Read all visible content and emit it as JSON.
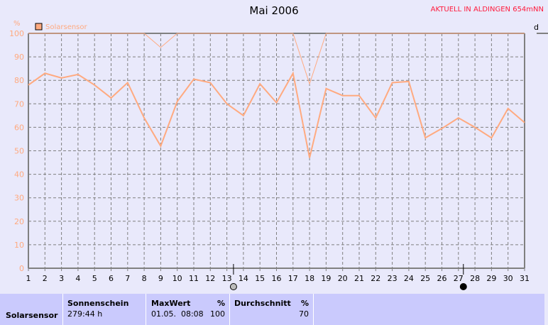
{
  "header": {
    "title": "Mai 2006",
    "subtitle": "AKTUELL IN ALDINGEN 654mNN",
    "right_panel_label": "d"
  },
  "chart_data": {
    "type": "line",
    "title": "Mai 2006",
    "ylabel": "%",
    "ylim": [
      0,
      100
    ],
    "yticks": [
      0,
      10,
      20,
      30,
      40,
      50,
      60,
      70,
      80,
      90,
      100
    ],
    "x": [
      1,
      2,
      3,
      4,
      5,
      6,
      7,
      8,
      9,
      10,
      11,
      12,
      13,
      14,
      15,
      16,
      17,
      18,
      19,
      20,
      21,
      22,
      23,
      24,
      25,
      26,
      27,
      28,
      29,
      30,
      31
    ],
    "grid": true,
    "legend": "top-left",
    "series": [
      {
        "name": "Solarsensor",
        "color": "#ffaa80",
        "values": [
          78,
          83,
          81,
          82.5,
          78,
          72.5,
          79,
          64,
          52,
          71,
          80.5,
          79,
          70,
          65,
          78.5,
          70.5,
          83,
          47,
          76.5,
          73.5,
          73.5,
          64,
          79,
          79.5,
          55.5,
          59.5,
          64,
          60,
          55.5,
          68,
          62
        ]
      },
      {
        "color": "#ffaa80",
        "values": [
          100,
          100,
          100,
          100,
          100,
          100,
          100,
          100,
          94,
          100,
          100,
          100,
          100,
          100,
          100,
          100,
          100,
          78.5,
          100,
          100,
          100,
          100,
          100,
          100,
          100,
          100,
          100,
          100,
          100,
          100,
          100
        ]
      }
    ],
    "annotations": [
      {
        "x": 13.4,
        "icon": "full-moon-icon"
      },
      {
        "x": 27.3,
        "icon": "new-moon-icon"
      }
    ]
  },
  "table": {
    "row_label": "Solarsensor",
    "sunshine": {
      "header": "Sonnenschein",
      "value": "279:44 h"
    },
    "max": {
      "header": "MaxWert",
      "unit": "%",
      "date": "01.05.  08:08",
      "value": "100"
    },
    "avg": {
      "header": "Durchschnitt",
      "unit": "%",
      "value": "70"
    }
  }
}
